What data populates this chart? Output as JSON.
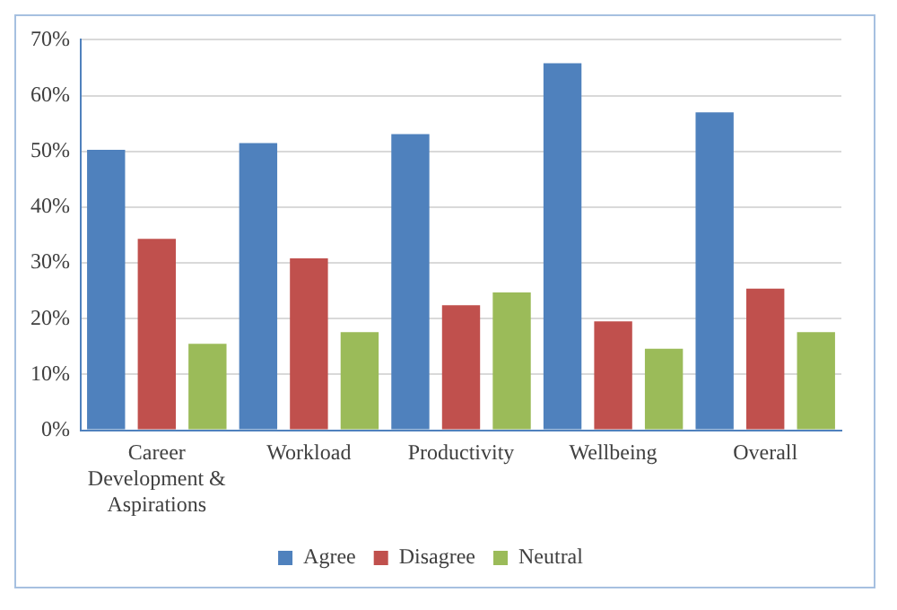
{
  "chart_data": {
    "type": "bar",
    "categories": [
      "Career Development & Aspirations",
      "Workload",
      "Productivity",
      "Wellbeing",
      "Overall"
    ],
    "series": [
      {
        "name": "Agree",
        "color": "#4f81bd",
        "values": [
          50.3,
          51.5,
          53.1,
          65.8,
          57.0
        ]
      },
      {
        "name": "Disagree",
        "color": "#c0504d",
        "values": [
          34.3,
          30.8,
          22.4,
          19.5,
          25.4
        ]
      },
      {
        "name": "Neutral",
        "color": "#9bbb59",
        "values": [
          15.5,
          17.6,
          24.7,
          14.6,
          17.6
        ]
      }
    ],
    "ylim": [
      0,
      70
    ],
    "yticks": [
      {
        "value": 0,
        "label": "0%"
      },
      {
        "value": 10,
        "label": "10%"
      },
      {
        "value": 20,
        "label": "20%"
      },
      {
        "value": 30,
        "label": "30%"
      },
      {
        "value": 40,
        "label": "40%"
      },
      {
        "value": 50,
        "label": "50%"
      },
      {
        "value": 60,
        "label": "60%"
      },
      {
        "value": 70,
        "label": "70%"
      }
    ],
    "grid": "y",
    "legend": "bottom"
  }
}
